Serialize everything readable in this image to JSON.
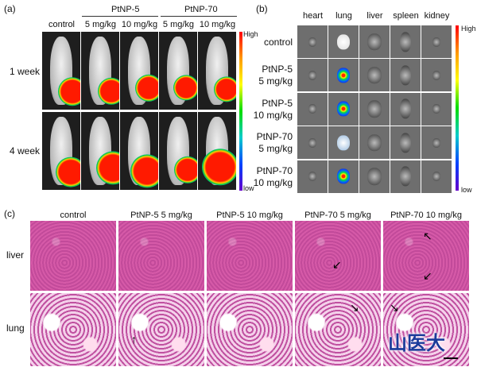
{
  "panel_a": {
    "label": "(a)",
    "group_headers": [
      "PtNP-5",
      "PtNP-70"
    ],
    "columns": [
      "control",
      "5 mg/kg",
      "10 mg/kg",
      "5 mg/kg",
      "10 mg/kg"
    ],
    "rows": [
      "1 week",
      "4 week"
    ],
    "colorbar": {
      "high": "High",
      "low": "low"
    }
  },
  "panel_b": {
    "label": "(b)",
    "columns": [
      "heart",
      "lung",
      "liver",
      "spleen",
      "kidney"
    ],
    "rows": [
      {
        "l1": "control",
        "l2": ""
      },
      {
        "l1": "PtNP-5",
        "l2": "5 mg/kg"
      },
      {
        "l1": "PtNP-5",
        "l2": "10 mg/kg"
      },
      {
        "l1": "PtNP-70",
        "l2": "5 mg/kg"
      },
      {
        "l1": "PtNP-70",
        "l2": "10 mg/kg"
      }
    ],
    "colorbar": {
      "high": "High",
      "low": "low"
    }
  },
  "panel_c": {
    "label": "(c)",
    "columns": [
      "control",
      "PtNP-5 5 mg/kg",
      "PtNP-5 10 mg/kg",
      "PtNP-70 5 mg/kg",
      "PtNP-70 10 mg/kg"
    ],
    "rows": [
      "liver",
      "lung"
    ]
  },
  "logo": {
    "text": "山医大"
  },
  "colors": {
    "hne_pink": "#cc55a5",
    "bioluminescence_high": "#ff0000",
    "bioluminescence_low": "#6600cc"
  }
}
